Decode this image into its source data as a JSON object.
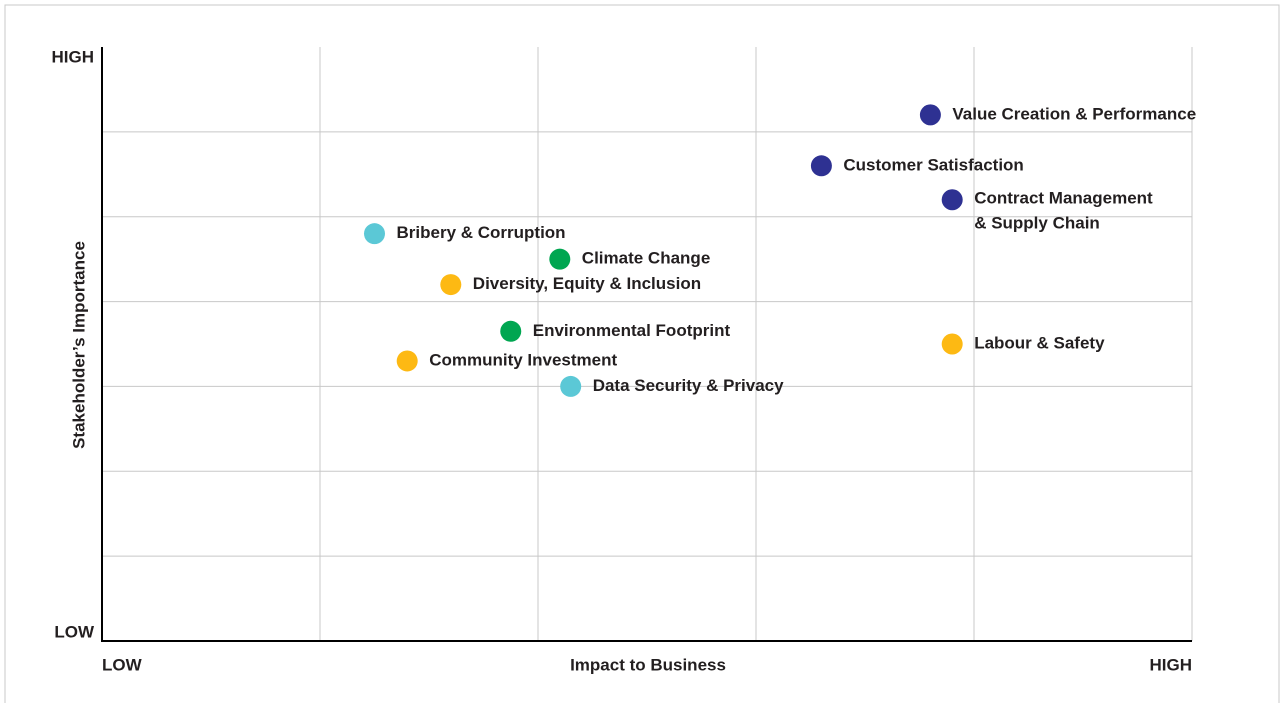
{
  "chart_data": {
    "type": "scatter",
    "xlabel": "Impact to Business",
    "ylabel": "Stakeholder’s Importance",
    "xlim": [
      0,
      10
    ],
    "ylim": [
      0,
      7
    ],
    "xticks": [
      {
        "value": 0,
        "label": "LOW"
      },
      {
        "value": 10,
        "label": "HIGH"
      }
    ],
    "yticks": [
      {
        "value": 0,
        "label": "LOW"
      },
      {
        "value": 7,
        "label": "HIGH"
      }
    ],
    "xgrid": [
      2,
      4,
      6,
      8,
      10
    ],
    "ygrid": [
      1,
      2,
      3,
      4,
      5,
      6
    ],
    "grid": true,
    "points": [
      {
        "name": "Value Creation & Performance",
        "x": 7.6,
        "y": 6.2,
        "color": "#2e3192"
      },
      {
        "name": "Customer Satisfaction",
        "x": 6.6,
        "y": 5.6,
        "color": "#2e3192"
      },
      {
        "name": "Contract Management\n& Supply Chain",
        "x": 7.8,
        "y": 5.2,
        "color": "#2e3192"
      },
      {
        "name": "Bribery & Corruption",
        "x": 2.5,
        "y": 4.8,
        "color": "#5bc8d6"
      },
      {
        "name": "Climate Change",
        "x": 4.2,
        "y": 4.5,
        "color": "#00a651"
      },
      {
        "name": "Diversity, Equity & Inclusion",
        "x": 3.2,
        "y": 4.2,
        "color": "#fdb913"
      },
      {
        "name": "Environmental Footprint",
        "x": 3.75,
        "y": 3.65,
        "color": "#00a651"
      },
      {
        "name": "Community Investment",
        "x": 2.8,
        "y": 3.3,
        "color": "#fdb913"
      },
      {
        "name": "Data Security & Privacy",
        "x": 4.3,
        "y": 3.0,
        "color": "#5bc8d6"
      },
      {
        "name": "Labour & Safety",
        "x": 7.8,
        "y": 3.5,
        "color": "#fdb913"
      }
    ]
  }
}
